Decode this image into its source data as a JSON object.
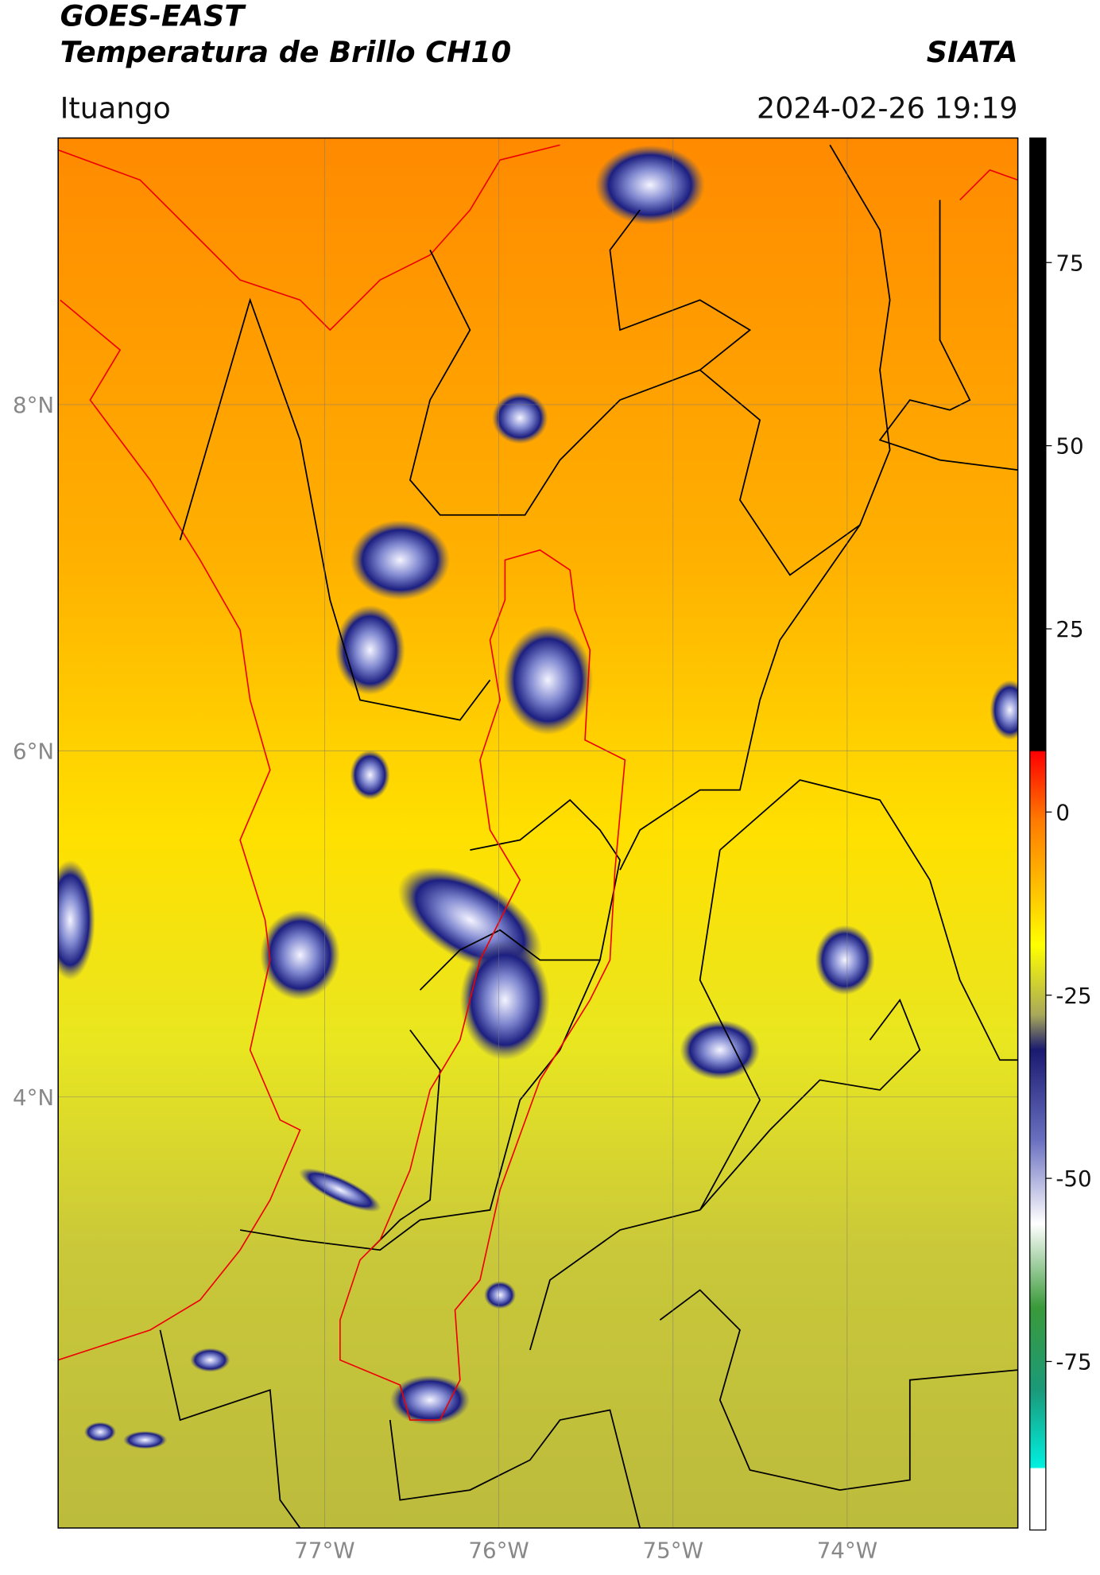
{
  "header": {
    "title": "GOES-EAST",
    "subtitle": "Temperatura de Brillo CH10",
    "source": "SIATA",
    "location": "Ituango",
    "datetime": "2024-02-26 19:19"
  },
  "map": {
    "lon_range": [
      -78.53,
      -73.02
    ],
    "lat_range": [
      1.51,
      9.54
    ],
    "lon_ticks": [
      {
        "value": -77,
        "label": "77°W"
      },
      {
        "value": -76,
        "label": "76°W"
      },
      {
        "value": -75,
        "label": "75°W"
      },
      {
        "value": -74,
        "label": "74°W"
      }
    ],
    "lat_ticks": [
      {
        "value": 8,
        "label": "8°N"
      },
      {
        "value": 6,
        "label": "6°N"
      },
      {
        "value": 4,
        "label": "4°N"
      }
    ]
  },
  "colorbar": {
    "range": [
      -98,
      92
    ],
    "ticks": [
      75,
      50,
      25,
      0,
      -25,
      -50,
      -75
    ]
  }
}
